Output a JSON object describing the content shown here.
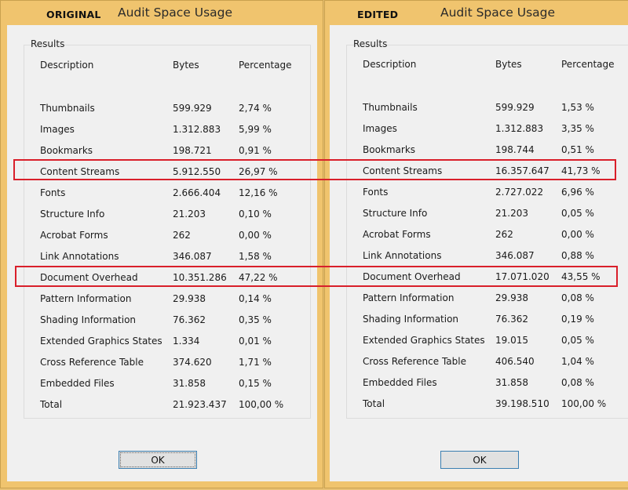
{
  "original": {
    "tag": "ORIGINAL",
    "title": "Audit Space Usage",
    "group_label": "Results",
    "headers": {
      "description": "Description",
      "bytes": "Bytes",
      "percentage": "Percentage"
    },
    "rows": [
      {
        "description": "Thumbnails",
        "bytes": "599.929",
        "percentage": "2,74 %"
      },
      {
        "description": "Images",
        "bytes": "1.312.883",
        "percentage": "5,99 %"
      },
      {
        "description": "Bookmarks",
        "bytes": "198.721",
        "percentage": "0,91 %"
      },
      {
        "description": "Content Streams",
        "bytes": "5.912.550",
        "percentage": "26,97 %"
      },
      {
        "description": "Fonts",
        "bytes": "2.666.404",
        "percentage": "12,16 %"
      },
      {
        "description": "Structure Info",
        "bytes": "21.203",
        "percentage": "0,10 %"
      },
      {
        "description": "Acrobat Forms",
        "bytes": "262",
        "percentage": "0,00 %"
      },
      {
        "description": "Link Annotations",
        "bytes": "346.087",
        "percentage": "1,58 %"
      },
      {
        "description": "Document Overhead",
        "bytes": "10.351.286",
        "percentage": "47,22 %"
      },
      {
        "description": "Pattern Information",
        "bytes": "29.938",
        "percentage": "0,14 %"
      },
      {
        "description": "Shading Information",
        "bytes": "76.362",
        "percentage": "0,35 %"
      },
      {
        "description": "Extended Graphics States",
        "bytes": "1.334",
        "percentage": "0,01 %"
      },
      {
        "description": "Cross Reference Table",
        "bytes": "374.620",
        "percentage": "1,71 %"
      },
      {
        "description": "Embedded Files",
        "bytes": "31.858",
        "percentage": "0,15 %"
      },
      {
        "description": "Total",
        "bytes": "21.923.437",
        "percentage": "100,00 %"
      }
    ],
    "ok_label": "OK"
  },
  "edited": {
    "tag": "EDITED",
    "title": "Audit Space Usage",
    "group_label": "Results",
    "headers": {
      "description": "Description",
      "bytes": "Bytes",
      "percentage": "Percentage"
    },
    "rows": [
      {
        "description": "Thumbnails",
        "bytes": "599.929",
        "percentage": "1,53 %"
      },
      {
        "description": "Images",
        "bytes": "1.312.883",
        "percentage": "3,35 %"
      },
      {
        "description": "Bookmarks",
        "bytes": "198.744",
        "percentage": "0,51 %"
      },
      {
        "description": "Content Streams",
        "bytes": "16.357.647",
        "percentage": "41,73 %"
      },
      {
        "description": "Fonts",
        "bytes": "2.727.022",
        "percentage": "6,96 %"
      },
      {
        "description": "Structure Info",
        "bytes": "21.203",
        "percentage": "0,05 %"
      },
      {
        "description": "Acrobat Forms",
        "bytes": "262",
        "percentage": "0,00 %"
      },
      {
        "description": "Link Annotations",
        "bytes": "346.087",
        "percentage": "0,88 %"
      },
      {
        "description": "Document Overhead",
        "bytes": "17.071.020",
        "percentage": "43,55 %"
      },
      {
        "description": "Pattern Information",
        "bytes": "29.938",
        "percentage": "0,08 %"
      },
      {
        "description": "Shading Information",
        "bytes": "76.362",
        "percentage": "0,19 %"
      },
      {
        "description": "Extended Graphics States",
        "bytes": "19.015",
        "percentage": "0,05 %"
      },
      {
        "description": "Cross Reference Table",
        "bytes": "406.540",
        "percentage": "1,04 %"
      },
      {
        "description": "Embedded Files",
        "bytes": "31.858",
        "percentage": "0,08 %"
      },
      {
        "description": "Total",
        "bytes": "39.198.510",
        "percentage": "100,00 %"
      }
    ],
    "ok_label": "OK"
  },
  "colors": {
    "window_frame": "#f0c46e",
    "client_bg": "#f0f0f0",
    "highlight": "#d91f2a",
    "button_border": "#3c7fb1"
  }
}
